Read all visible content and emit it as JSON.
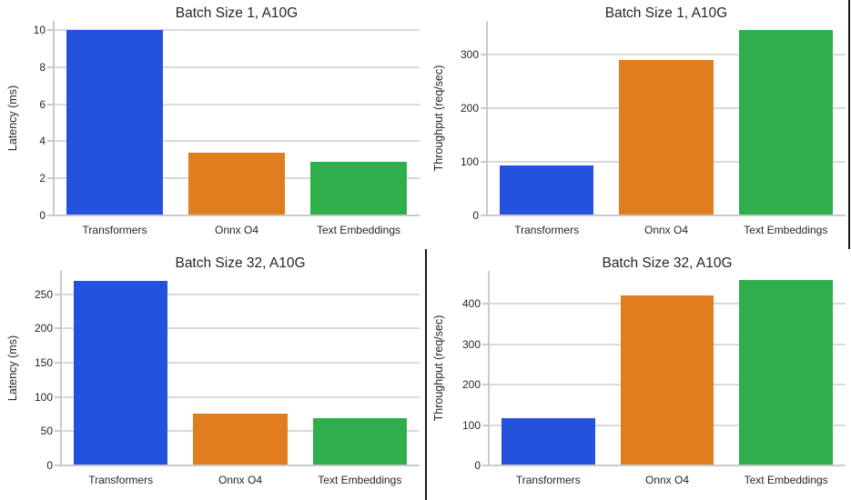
{
  "palette": {
    "blue": "#2452dd",
    "orange": "#e07d1e",
    "green": "#2faf4b",
    "gridline": "#d9d9d9",
    "spine": "#c9c9c9",
    "text": "#262626",
    "divider": "#1a1a1a",
    "background": "#ffffff"
  },
  "categories": [
    "Transformers",
    "Onnx O4",
    "Text Embeddings"
  ],
  "chart_data": [
    {
      "id": "batch1-latency",
      "type": "bar",
      "title": "Batch Size 1, A10G",
      "xlabel": "",
      "ylabel": "Latency (ms)",
      "categories": [
        "Transformers",
        "Onnx O4",
        "Text Embeddings"
      ],
      "values": [
        10.0,
        3.4,
        2.9
      ],
      "bar_colors": [
        "#2452dd",
        "#e07d1e",
        "#2faf4b"
      ],
      "yticks": [
        0,
        2,
        4,
        6,
        8,
        10
      ],
      "ylim": [
        0,
        10.5
      ],
      "grid": true,
      "legend": "none"
    },
    {
      "id": "batch1-throughput",
      "type": "bar",
      "title": "Batch Size 1, A10G",
      "xlabel": "",
      "ylabel": "Throughput (req/sec)",
      "categories": [
        "Transformers",
        "Onnx O4",
        "Text Embeddings"
      ],
      "values": [
        93,
        290,
        345
      ],
      "bar_colors": [
        "#2452dd",
        "#e07d1e",
        "#2faf4b"
      ],
      "yticks": [
        0,
        100,
        200,
        300
      ],
      "ylim": [
        0,
        362
      ],
      "grid": true,
      "legend": "none"
    },
    {
      "id": "batch32-latency",
      "type": "bar",
      "title": "Batch Size 32, A10G",
      "xlabel": "",
      "ylabel": "Latency (ms)",
      "categories": [
        "Transformers",
        "Onnx O4",
        "Text Embeddings"
      ],
      "values": [
        270,
        75,
        69
      ],
      "bar_colors": [
        "#2452dd",
        "#e07d1e",
        "#2faf4b"
      ],
      "yticks": [
        0,
        50,
        100,
        150,
        200,
        250
      ],
      "ylim": [
        0,
        284
      ],
      "grid": true,
      "legend": "none"
    },
    {
      "id": "batch32-throughput",
      "type": "bar",
      "title": "Batch Size 32, A10G",
      "xlabel": "",
      "ylabel": "Throughput (req/sec)",
      "categories": [
        "Transformers",
        "Onnx O4",
        "Text Embeddings"
      ],
      "values": [
        117,
        420,
        458
      ],
      "bar_colors": [
        "#2452dd",
        "#e07d1e",
        "#2faf4b"
      ],
      "yticks": [
        0,
        100,
        200,
        300,
        400
      ],
      "ylim": [
        0,
        481
      ],
      "grid": true,
      "legend": "none"
    }
  ]
}
